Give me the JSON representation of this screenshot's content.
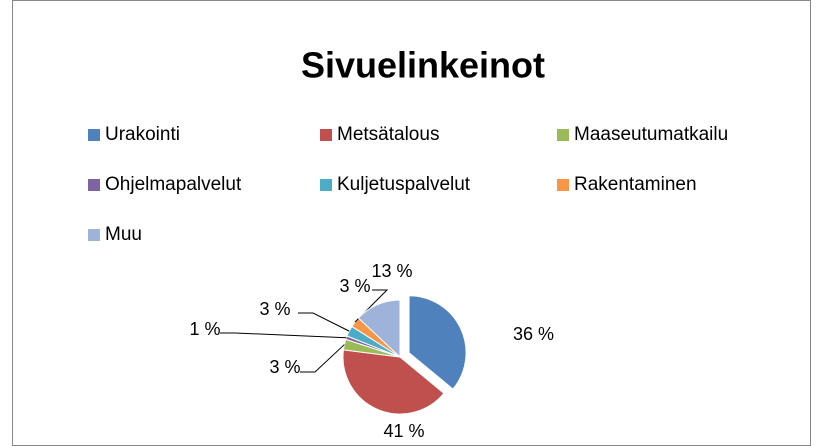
{
  "chart_data": {
    "type": "pie",
    "title": "Sivuelinkeinot",
    "categories": [
      "Urakointi",
      "Metsätalous",
      "Maaseutumatkailu",
      "Ohjelmapalvelut",
      "Kuljetuspalvelut",
      "Rakentaminen",
      "Muu"
    ],
    "values": [
      36,
      41,
      3,
      1,
      3,
      3,
      13
    ],
    "value_labels": [
      "36 %",
      "41 %",
      "3 %",
      "1 %",
      "3 %",
      "3 %",
      "13 %"
    ],
    "colors": [
      "#4f81bd",
      "#c0504d",
      "#9bbb59",
      "#8064a2",
      "#4bacc6",
      "#f79646",
      "#9db3d9"
    ],
    "legend": "top"
  }
}
